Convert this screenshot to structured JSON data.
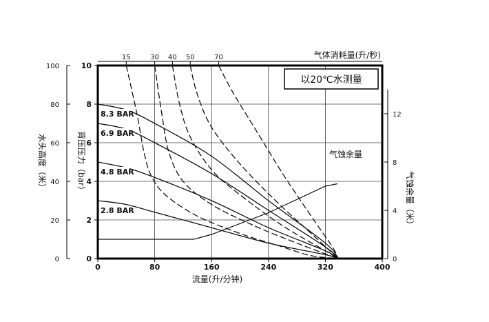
{
  "chart_data": {
    "type": "line",
    "note_box": "以20℃水测量",
    "x_axis": {
      "label": "流量(升/分钟)",
      "range": [
        0,
        400
      ],
      "ticks": [
        "0",
        "80",
        "160",
        "240",
        "320",
        "400"
      ],
      "tick_values": [
        0,
        80,
        160,
        240,
        320,
        400
      ]
    },
    "x2_axis": {
      "label": "气体消耗量(升/秒)",
      "ticks": [
        "15",
        "30",
        "40",
        "50",
        "70"
      ],
      "tick_flow_positions": [
        40,
        80,
        105,
        130,
        170
      ]
    },
    "y_axis": {
      "label": "背压压力（bar）",
      "range": [
        0,
        10
      ],
      "ticks": [
        "0",
        "2",
        "4",
        "6",
        "8",
        "10"
      ],
      "tick_values": [
        0,
        2,
        4,
        6,
        8,
        10
      ]
    },
    "y_left2_axis": {
      "label": "水头高度（米）",
      "range": [
        0,
        100
      ],
      "ticks": [
        "0",
        "20",
        "40",
        "60",
        "80",
        "100"
      ],
      "tick_values": [
        0,
        20,
        40,
        60,
        80,
        100
      ]
    },
    "y_right_axis": {
      "label": "气蚀余量（米）",
      "range": [
        0,
        16
      ],
      "ticks": [
        "0",
        "4",
        "8",
        "12"
      ],
      "tick_values": [
        0,
        4,
        8,
        12
      ]
    },
    "pressure_curves": [
      {
        "name": "8.3 BAR",
        "points": [
          [
            0,
            8.0
          ],
          [
            40,
            7.7
          ],
          [
            80,
            7.0
          ],
          [
            160,
            5.3
          ],
          [
            240,
            3.0
          ],
          [
            320,
            0.8
          ],
          [
            338,
            0.0
          ]
        ]
      },
      {
        "name": "6.9 BAR",
        "points": [
          [
            0,
            7.0
          ],
          [
            40,
            6.7
          ],
          [
            80,
            6.0
          ],
          [
            160,
            4.4
          ],
          [
            240,
            2.5
          ],
          [
            320,
            0.6
          ],
          [
            338,
            0.0
          ]
        ]
      },
      {
        "name": "4.8 BAR",
        "points": [
          [
            0,
            5.0
          ],
          [
            40,
            4.7
          ],
          [
            80,
            4.2
          ],
          [
            160,
            3.0
          ],
          [
            240,
            1.6
          ],
          [
            320,
            0.4
          ],
          [
            338,
            0.0
          ]
        ]
      },
      {
        "name": "2.8 BAR",
        "points": [
          [
            0,
            3.0
          ],
          [
            40,
            2.8
          ],
          [
            80,
            2.4
          ],
          [
            160,
            1.6
          ],
          [
            240,
            0.8
          ],
          [
            320,
            0.2
          ],
          [
            338,
            0.0
          ]
        ]
      }
    ],
    "air_curves": [
      {
        "points": [
          [
            40,
            10
          ],
          [
            55,
            7.5
          ],
          [
            65,
            5.5
          ],
          [
            75,
            4.3
          ],
          [
            95,
            3.3
          ],
          [
            140,
            2.2
          ],
          [
            200,
            1.3
          ],
          [
            260,
            0.6
          ],
          [
            300,
            0.15
          ],
          [
            338,
            0.0
          ]
        ]
      },
      {
        "points": [
          [
            80,
            10
          ],
          [
            90,
            7.5
          ],
          [
            100,
            5.5
          ],
          [
            120,
            4.0
          ],
          [
            160,
            2.8
          ],
          [
            220,
            1.7
          ],
          [
            280,
            0.8
          ],
          [
            338,
            0.0
          ]
        ]
      },
      {
        "points": [
          [
            105,
            10
          ],
          [
            115,
            8.0
          ],
          [
            130,
            6.3
          ],
          [
            160,
            4.6
          ],
          [
            200,
            3.3
          ],
          [
            260,
            1.7
          ],
          [
            320,
            0.4
          ],
          [
            338,
            0.0
          ]
        ]
      },
      {
        "points": [
          [
            130,
            10
          ],
          [
            140,
            8.5
          ],
          [
            160,
            6.8
          ],
          [
            200,
            4.9
          ],
          [
            250,
            3.0
          ],
          [
            300,
            1.3
          ],
          [
            338,
            0.0
          ]
        ]
      },
      {
        "points": [
          [
            170,
            10
          ],
          [
            190,
            8.6
          ],
          [
            220,
            6.8
          ],
          [
            260,
            4.4
          ],
          [
            300,
            2.2
          ],
          [
            330,
            0.6
          ],
          [
            338,
            0.0
          ]
        ]
      }
    ],
    "npsh_curve": {
      "name": "气蚀余量",
      "points": [
        [
          0,
          1.6
        ],
        [
          135,
          1.6
        ],
        [
          160,
          2.0
        ],
        [
          240,
          3.8
        ],
        [
          320,
          6.0
        ],
        [
          337,
          6.2
        ]
      ]
    },
    "grid": true,
    "legend": "none"
  }
}
